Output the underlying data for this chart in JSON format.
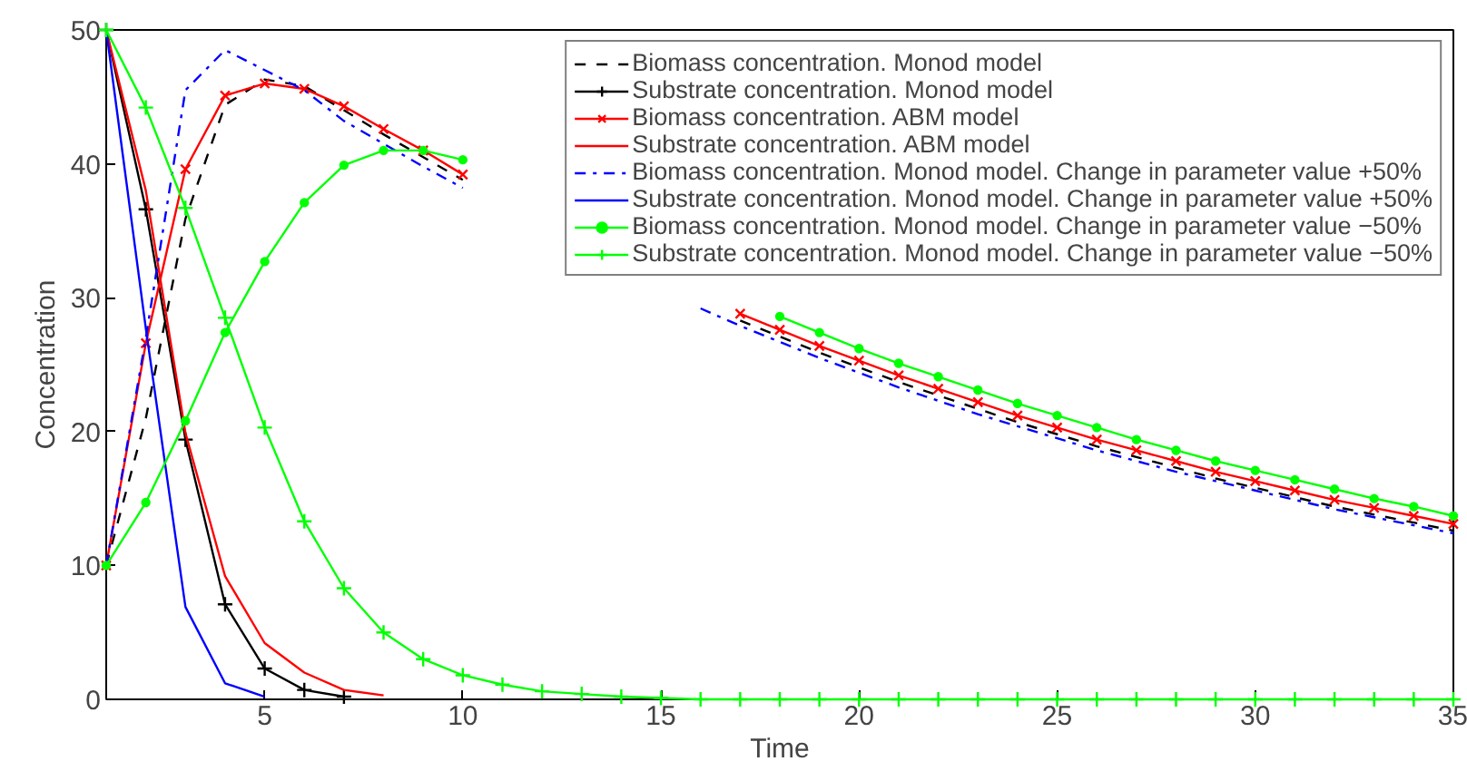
{
  "chart_data": {
    "type": "line",
    "xlabel": "Time",
    "ylabel": "Concentration",
    "x": [
      1,
      2,
      3,
      4,
      5,
      6,
      7,
      8,
      9,
      10,
      11,
      12,
      13,
      14,
      15,
      16,
      17,
      18,
      19,
      20,
      21,
      22,
      23,
      24,
      25,
      26,
      27,
      28,
      29,
      30,
      31,
      32,
      33,
      34,
      35
    ],
    "xlim": [
      1,
      35
    ],
    "xticks": [
      5,
      10,
      15,
      20,
      25,
      30,
      35
    ],
    "ylim": [
      0,
      50
    ],
    "yticks": [
      0,
      10,
      20,
      30,
      40,
      50
    ],
    "grid": false,
    "legend": "top right",
    "series": [
      {
        "name": "Biomass concentration. Monod model",
        "color": "#000000",
        "line_style": "dashed",
        "marker": "none",
        "values": [
          10,
          21,
          35.9,
          44.4,
          46.3,
          45.8,
          44,
          42.2,
          40.5,
          38.8,
          null,
          null,
          null,
          null,
          null,
          null,
          28.3,
          27.1,
          25.9,
          24.8,
          23.7,
          22.7,
          21.7,
          20.7,
          19.8,
          18.9,
          18.1,
          17.3,
          16.5,
          15.8,
          15.1,
          14.4,
          13.8,
          13.2,
          12.6
        ]
      },
      {
        "name": "Substrate concentration. Monod model",
        "color": "#000000",
        "line_style": "solid",
        "marker": "cross",
        "values": [
          50,
          36.6,
          19.4,
          7.1,
          2.3,
          0.7,
          0.2,
          null,
          null,
          null,
          null,
          null,
          null,
          null,
          null,
          null,
          null,
          null,
          null,
          null,
          null,
          null,
          null,
          null,
          null,
          null,
          null,
          null,
          null,
          null,
          null,
          null,
          null,
          null,
          null
        ]
      },
      {
        "name": "Biomass concentration. ABM model",
        "color": "#ff0000",
        "line_style": "solid",
        "marker": "x",
        "values": [
          10,
          26.6,
          39.6,
          45.1,
          46,
          45.6,
          44.3,
          42.6,
          41,
          39.2,
          null,
          null,
          null,
          null,
          null,
          null,
          28.8,
          27.6,
          26.4,
          25.3,
          24.2,
          23.2,
          22.2,
          21.2,
          20.3,
          19.4,
          18.6,
          17.8,
          17.0,
          16.3,
          15.6,
          14.9,
          14.3,
          13.7,
          13.1
        ]
      },
      {
        "name": "Substrate concentration. ABM model",
        "color": "#ff0000",
        "line_style": "solid",
        "marker": "none",
        "values": [
          50,
          38,
          19.9,
          9.2,
          4.2,
          2.0,
          0.7,
          0.3,
          null,
          null,
          null,
          null,
          null,
          null,
          null,
          null,
          null,
          null,
          null,
          null,
          null,
          null,
          null,
          null,
          null,
          null,
          null,
          null,
          null,
          null,
          null,
          null,
          null,
          null,
          null
        ]
      },
      {
        "name": "Biomass concentration. Monod model. Change in parameter value +50%",
        "color": "#0000ff",
        "line_style": "dashdot",
        "marker": "none",
        "values": [
          10,
          27,
          45.5,
          48.5,
          47,
          45.5,
          43.2,
          41.5,
          39.8,
          38.2,
          null,
          null,
          null,
          null,
          null,
          29.2,
          27.9,
          26.7,
          25.5,
          24.4,
          23.3,
          22.3,
          21.3,
          20.4,
          19.5,
          18.6,
          17.8,
          17.0,
          16.3,
          15.6,
          14.9,
          14.2,
          13.6,
          13.0,
          12.4
        ]
      },
      {
        "name": "Substrate concentration. Monod model. Change in parameter value +50%",
        "color": "#0000ff",
        "line_style": "solid",
        "marker": "none",
        "values": [
          50,
          27.7,
          6.9,
          1.2,
          0.2,
          null,
          null,
          null,
          null,
          null,
          null,
          null,
          null,
          null,
          null,
          null,
          null,
          null,
          null,
          null,
          null,
          null,
          null,
          null,
          null,
          null,
          null,
          null,
          null,
          null,
          null,
          null,
          null,
          null,
          null
        ]
      },
      {
        "name": "Biomass concentration. Monod model. Change in parameter value −50%",
        "color": "#00ff00",
        "line_style": "solid",
        "marker": "dot",
        "values": [
          10,
          14.7,
          20.8,
          27.4,
          32.7,
          37.1,
          39.9,
          41,
          41,
          40.3,
          null,
          null,
          null,
          null,
          null,
          null,
          null,
          28.6,
          27.4,
          26.2,
          25.1,
          24.1,
          23.1,
          22.1,
          21.2,
          20.3,
          19.4,
          18.6,
          17.8,
          17.1,
          16.4,
          15.7,
          15.0,
          14.4,
          13.7
        ]
      },
      {
        "name": "Substrate concentration. Monod model. Change in parameter value −50%",
        "color": "#00ff00",
        "line_style": "solid",
        "marker": "cross",
        "values": [
          50,
          44.2,
          36.7,
          28.5,
          20.3,
          13.3,
          8.3,
          5.0,
          3.0,
          1.8,
          1.1,
          0.6,
          0.4,
          0.2,
          0.1,
          0,
          0,
          0,
          0,
          0,
          0,
          0,
          0,
          0,
          0,
          0,
          0,
          0,
          0,
          0,
          0,
          0,
          0,
          0,
          0
        ]
      }
    ]
  }
}
